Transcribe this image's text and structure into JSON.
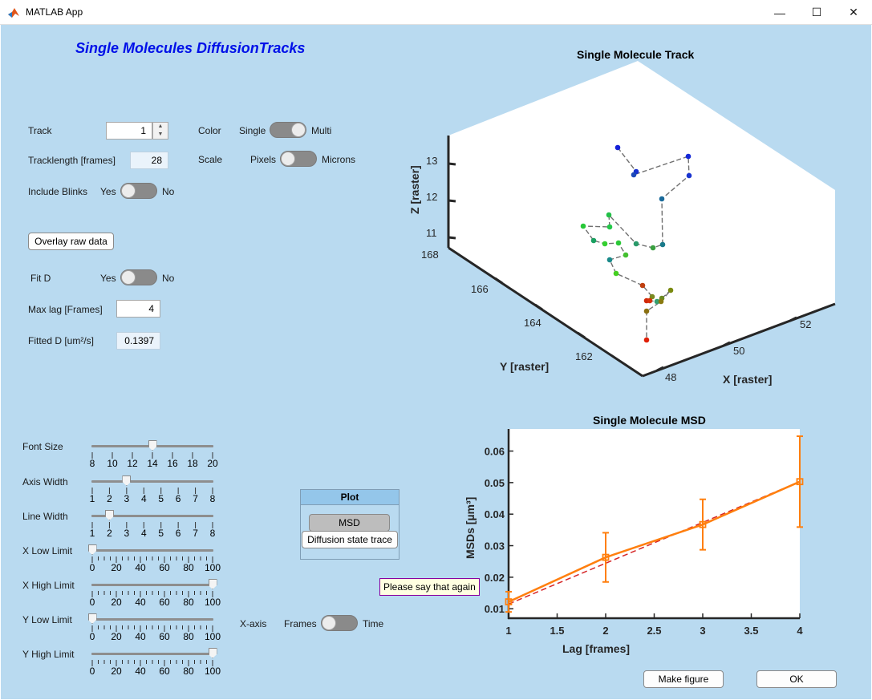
{
  "window": {
    "title": "MATLAB App",
    "controls": {
      "minimize": "—",
      "maximize": "☐",
      "close": "✕"
    }
  },
  "app_title": "Single Molecules DiffusionTracks",
  "track": {
    "label": "Track",
    "value": "1"
  },
  "tracklength": {
    "label": "Tracklength [frames]",
    "value": "28"
  },
  "include_blinks": {
    "label": "Include Blinks",
    "on": "Yes",
    "off": "No",
    "state": "Yes"
  },
  "color": {
    "label": "Color",
    "left": "Single",
    "right": "Multi",
    "state": "Multi"
  },
  "scale": {
    "label": "Scale",
    "left": "Pixels",
    "right": "Microns",
    "state": "Pixels"
  },
  "overlay_button": "Overlay raw data",
  "fit_d": {
    "label": "Fit D",
    "on": "Yes",
    "off": "No",
    "state": "Yes"
  },
  "max_lag": {
    "label": "Max lag  [Frames]",
    "value": "4"
  },
  "fitted_d": {
    "label": "Fitted D [um²/s]",
    "value": "0.1397"
  },
  "sliders": [
    {
      "label": "Font Size",
      "ticks": [
        "8",
        "10",
        "12",
        "14",
        "16",
        "18",
        "20"
      ],
      "min": 8,
      "max": 20,
      "value": 14,
      "minor": false
    },
    {
      "label": "Axis Width",
      "ticks": [
        "1",
        "2",
        "3",
        "4",
        "5",
        "6",
        "7",
        "8"
      ],
      "min": 1,
      "max": 8,
      "value": 3,
      "minor": false
    },
    {
      "label": "Line Width",
      "ticks": [
        "1",
        "2",
        "3",
        "4",
        "5",
        "6",
        "7",
        "8"
      ],
      "min": 1,
      "max": 8,
      "value": 2,
      "minor": false
    },
    {
      "label": "X Low Limit",
      "ticks": [
        "0",
        "20",
        "40",
        "60",
        "80",
        "100"
      ],
      "min": 0,
      "max": 100,
      "value": 0,
      "minor": true
    },
    {
      "label": "X High Limit",
      "ticks": [
        "0",
        "20",
        "40",
        "60",
        "80",
        "100"
      ],
      "min": 0,
      "max": 100,
      "value": 100,
      "minor": true
    },
    {
      "label": "Y Low Limit",
      "ticks": [
        "0",
        "20",
        "40",
        "60",
        "80",
        "100"
      ],
      "min": 0,
      "max": 100,
      "value": 0,
      "minor": true
    },
    {
      "label": "Y High Limit",
      "ticks": [
        "0",
        "20",
        "40",
        "60",
        "80",
        "100"
      ],
      "min": 0,
      "max": 100,
      "value": 100,
      "minor": true
    }
  ],
  "xaxis_switch": {
    "label": "X-axis",
    "left": "Frames",
    "right": "Time",
    "state": "Frames"
  },
  "plot_panel": {
    "title": "Plot",
    "msd_button": "MSD",
    "diffusion_button": "Diffusion state trace"
  },
  "tooltip": "Please say that again",
  "make_figure_button": "Make figure",
  "ok_button": "OK",
  "chart_data": [
    {
      "type": "scatter",
      "title": "Single Molecule Track",
      "xlabel": "X [raster]",
      "ylabel": "Y [raster]",
      "zlabel": "Z [raster]",
      "xticks": [
        "48",
        "50",
        "52"
      ],
      "yticks": [
        "162",
        "164",
        "166",
        "168"
      ],
      "zticks": [
        "11",
        "12",
        "13"
      ],
      "colormap": "blue to green to red along track",
      "num_points": 28
    },
    {
      "type": "line",
      "title": "Single Molecule MSD",
      "xlabel": "Lag [frames]",
      "ylabel": "MSDs  [µm³]",
      "xlim": [
        1,
        4
      ],
      "ylim": [
        0.007,
        0.067
      ],
      "xticks": [
        "1",
        "1.5",
        "2",
        "2.5",
        "3",
        "3.5",
        "4"
      ],
      "yticks": [
        "0.01",
        "0.02",
        "0.03",
        "0.04",
        "0.05",
        "0.06"
      ],
      "series": [
        {
          "style": "data with error bars",
          "color": "#ff7f0e",
          "x": [
            1,
            2,
            3,
            4
          ],
          "y": [
            0.0122,
            0.0263,
            0.0367,
            0.0503
          ],
          "err": [
            0.0032,
            0.0078,
            0.008,
            0.0144
          ]
        },
        {
          "style": "fit (dashed)",
          "color": "#d62728",
          "x": [
            1,
            4
          ],
          "y": [
            0.0115,
            0.0503
          ]
        }
      ]
    }
  ]
}
